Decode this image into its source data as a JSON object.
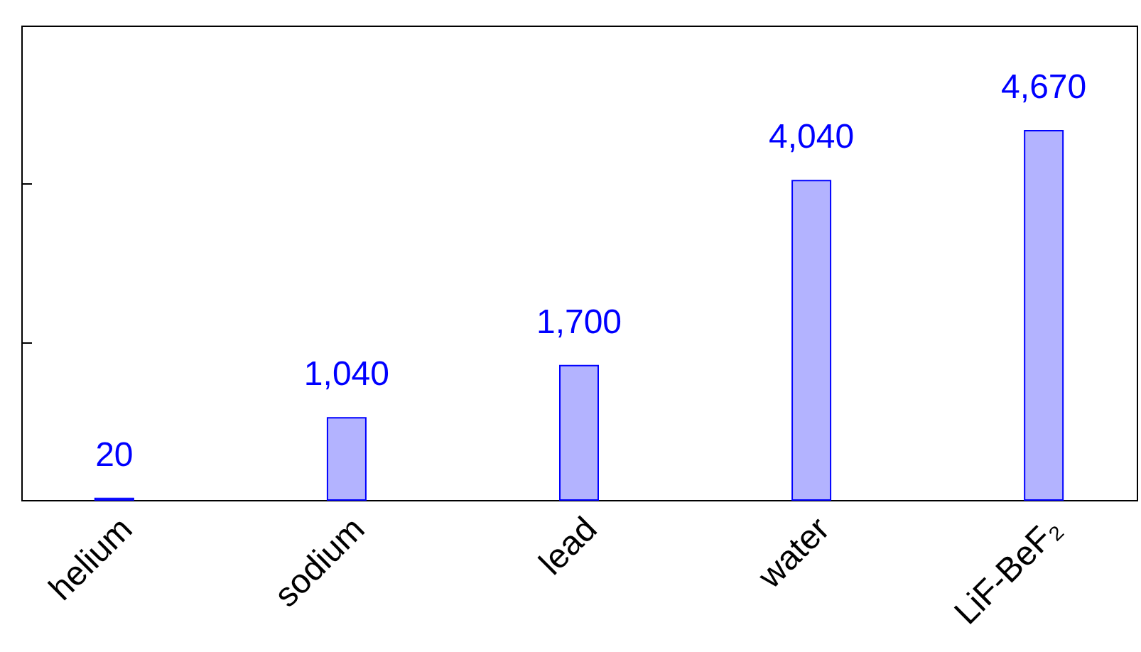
{
  "chart_data": {
    "type": "bar",
    "categories": [
      "helium",
      "sodium",
      "lead",
      "water",
      "LiF-BeF₂"
    ],
    "values": [
      20,
      1040,
      1700,
      4040,
      4670
    ],
    "color": "#b3b3ff",
    "value_labels": [
      "20",
      "1,040",
      "1,700",
      "4,040",
      "4,670"
    ],
    "ylim": [
      0,
      6000
    ],
    "yticks": [
      {
        "value": 2000,
        "label": null
      },
      {
        "value": 4000,
        "label": null
      }
    ],
    "tick_labels": "x"
  }
}
